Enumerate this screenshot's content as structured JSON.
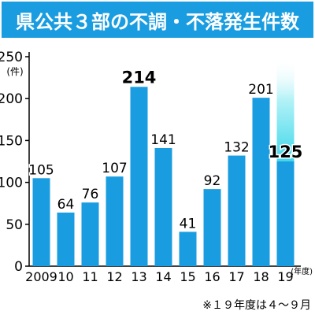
{
  "title": "県公共３部の不調・不落発生件数",
  "chart_data": {
    "type": "bar",
    "title": "県公共３部の不調・不落発生件数",
    "ylabel": "(件)",
    "xlabel": "(年度)",
    "ylim": [
      0,
      250
    ],
    "yticks": [
      0,
      50,
      100,
      150,
      200,
      250
    ],
    "categories": [
      "2009",
      "10",
      "11",
      "12",
      "13",
      "14",
      "15",
      "16",
      "17",
      "18",
      "19"
    ],
    "values": [
      105,
      64,
      76,
      107,
      214,
      141,
      41,
      92,
      132,
      201,
      125
    ],
    "value_labels": [
      "105",
      "64",
      "76",
      "107",
      "214",
      "141",
      "41",
      "92",
      "132",
      "201",
      "125"
    ],
    "emphasized_labels": [
      "214",
      "125"
    ],
    "partial_category": "19",
    "grid": false,
    "note": "※１９年度は４～９月"
  },
  "colors": {
    "title_bg": "#1a9de0",
    "bar": "#1a9de0",
    "partial_top": "#b3f2f7",
    "partial_mid": "#3fd7ea"
  }
}
